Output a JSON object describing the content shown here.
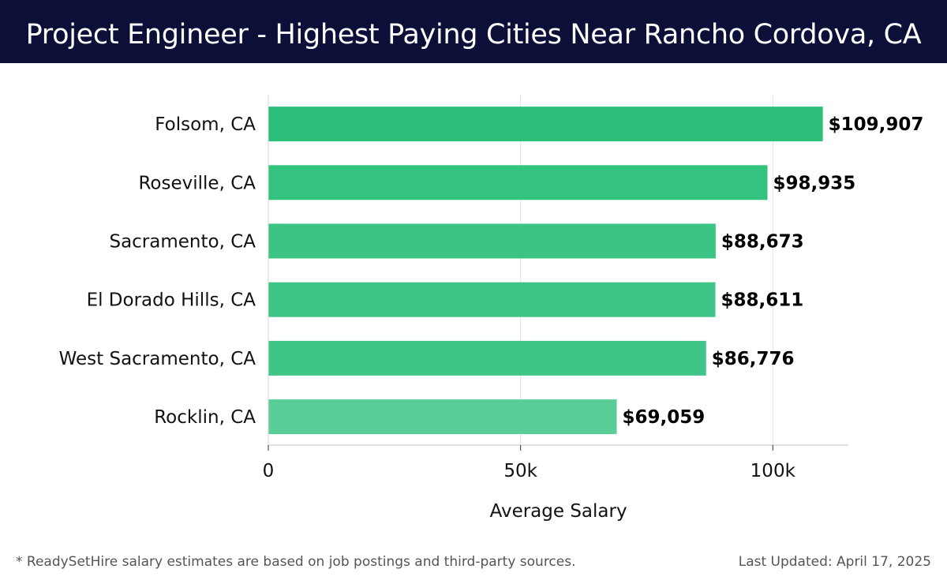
{
  "header": {
    "title": "Project Engineer - Highest Paying Cities Near Rancho Cordova, CA"
  },
  "chart_data": {
    "type": "bar",
    "orientation": "horizontal",
    "title": "Project Engineer - Highest Paying Cities Near Rancho Cordova, CA",
    "xlabel": "Average Salary",
    "ylabel": "",
    "categories": [
      "Folsom, CA",
      "Roseville, CA",
      "Sacramento, CA",
      "El Dorado Hills, CA",
      "West Sacramento, CA",
      "Rocklin, CA"
    ],
    "values": [
      109907,
      98935,
      88673,
      88611,
      86776,
      69059
    ],
    "value_labels": [
      "$109,907",
      "$98,935",
      "$88,673",
      "$88,611",
      "$86,776",
      "$69,059"
    ],
    "xlim": [
      0,
      115000
    ],
    "xticks": [
      0,
      50000,
      100000
    ],
    "xtick_labels": [
      "0",
      "50k",
      "100k"
    ],
    "grid": "vertical",
    "bar_colors": [
      "#2bbf79",
      "#34c27f",
      "#3cc485",
      "#3dc486",
      "#40c588",
      "#5bcd98"
    ]
  },
  "footer": {
    "note": "* ReadySetHire salary estimates are based on job postings and third-party sources.",
    "updated": "Last Updated: April 17, 2025"
  }
}
